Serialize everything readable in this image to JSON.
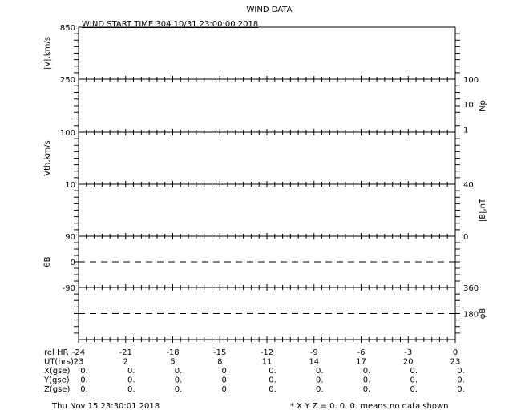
{
  "title": "WIND DATA",
  "subtitle": "WIND START TIME 304 10/31 23:00:00 2018",
  "footer_left": "Thu Nov 15 23:30:01 2018",
  "footer_right": "* X Y Z = 0. 0. 0. means no data shown",
  "chart_data": [
    {
      "type": "line",
      "ylabel": "|V|,km/s",
      "ylabel_side": "left",
      "yticks": [
        "850",
        "250"
      ],
      "ylim": [
        250,
        850
      ],
      "series": []
    },
    {
      "type": "line",
      "ylabel": "Np",
      "ylabel_side": "right",
      "yticks": [
        "100",
        "10",
        "1"
      ],
      "yscale": "log",
      "series": []
    },
    {
      "type": "line",
      "ylabel": "Vth,km/s",
      "ylabel_side": "left",
      "yticks": [
        "100",
        "10"
      ],
      "yscale": "log",
      "series": []
    },
    {
      "type": "line",
      "ylabel": "|B|,nT",
      "ylabel_side": "right",
      "yticks": [
        "40",
        "0"
      ],
      "ylim": [
        0,
        40
      ],
      "series": []
    },
    {
      "type": "line",
      "ylabel": "θB",
      "ylabel_side": "left",
      "yticks": [
        "90",
        "0",
        "-90"
      ],
      "ylim": [
        -90,
        90
      ],
      "reference_line": 0,
      "series": []
    },
    {
      "type": "line",
      "ylabel": "φB",
      "ylabel_side": "right",
      "yticks": [
        "360",
        "180"
      ],
      "ylim": [
        0,
        360
      ],
      "reference_line": 180,
      "series": []
    }
  ],
  "x_axis": {
    "rows": [
      {
        "label": "rel HR",
        "values": [
          "-24",
          "-21",
          "-18",
          "-15",
          "-12",
          "-9",
          "-6",
          "-3",
          "0"
        ]
      },
      {
        "label": "UT(hrs)",
        "values": [
          "23",
          "2",
          "5",
          "8",
          "11",
          "14",
          "17",
          "20",
          "23"
        ]
      },
      {
        "label": "X(gse)",
        "values": [
          "0.",
          "0.",
          "0.",
          "0.",
          "0.",
          "0.",
          "0.",
          "0.",
          "0."
        ]
      },
      {
        "label": "Y(gse)",
        "values": [
          "0.",
          "0.",
          "0.",
          "0.",
          "0.",
          "0.",
          "0.",
          "0.",
          "0."
        ]
      },
      {
        "label": "Z(gse)",
        "values": [
          "0.",
          "0.",
          "0.",
          "0.",
          "0.",
          "0.",
          "0.",
          "0.",
          "0."
        ]
      }
    ],
    "xlim": [
      -24,
      0
    ]
  }
}
